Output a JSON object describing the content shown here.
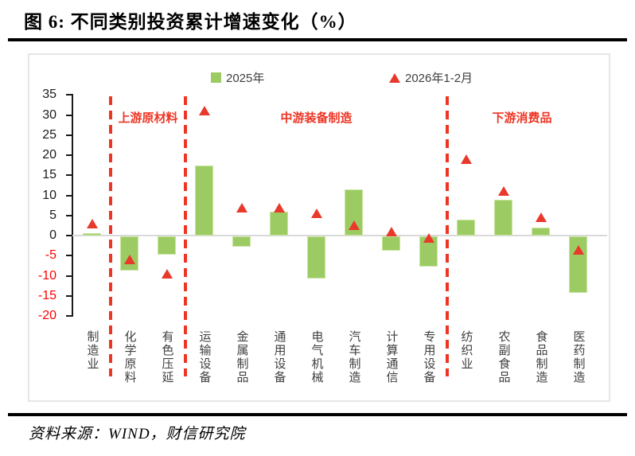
{
  "title": "图 6:  不同类别投资累计增速变化（%）",
  "source": "资料来源：WIND，财信研究院",
  "colors": {
    "bar_green": "#9ccb63",
    "marker_red": "#e8392b",
    "separator_red": "#ed3524",
    "negative_tick_red": "#ff0000",
    "axis_black": "#1a1a1a",
    "zero_line_gray": "#d9d9d9"
  },
  "legend": {
    "items": [
      {
        "label": "2025年",
        "marker": "square"
      },
      {
        "label": "2026年1-2月",
        "marker": "triangle"
      }
    ]
  },
  "chart_data": {
    "type": "bar",
    "title": "不同类别投资累计增速变化（%）",
    "categories": [
      "制造业",
      "化学原料",
      "有色压延",
      "运输设备",
      "金属制品",
      "通用设备",
      "电气机械",
      "汽车制造",
      "计算通信",
      "专用设备",
      "纺织业",
      "农副食品",
      "食品制造",
      "医药制造"
    ],
    "series": [
      {
        "name": "2025年",
        "type": "bar",
        "values": [
          0.5,
          -8.5,
          -4.5,
          17.5,
          -2.5,
          6,
          -10.5,
          11.5,
          -3.5,
          -7.5,
          4,
          9,
          2,
          -14
        ]
      },
      {
        "name": "2026年1-2月",
        "type": "scatter-triangle",
        "values": [
          3,
          -6,
          -9.5,
          31,
          7,
          7,
          5.5,
          2.5,
          1,
          -0.5,
          19,
          11,
          4.5,
          -3.5
        ]
      }
    ],
    "ylim": [
      -20,
      35
    ],
    "yticks": [
      35,
      30,
      25,
      20,
      15,
      10,
      5,
      0,
      -5,
      -10,
      -15,
      -20
    ],
    "grid": "zero-line-only",
    "legend_position": "top-center",
    "sections": [
      {
        "label": "上游原材料",
        "start": 1,
        "end": 2
      },
      {
        "label": "中游装备制造",
        "start": 3,
        "end": 9
      },
      {
        "label": "下游消费品",
        "start": 10,
        "end": 13
      }
    ],
    "separators_after": [
      0,
      2,
      9
    ]
  }
}
